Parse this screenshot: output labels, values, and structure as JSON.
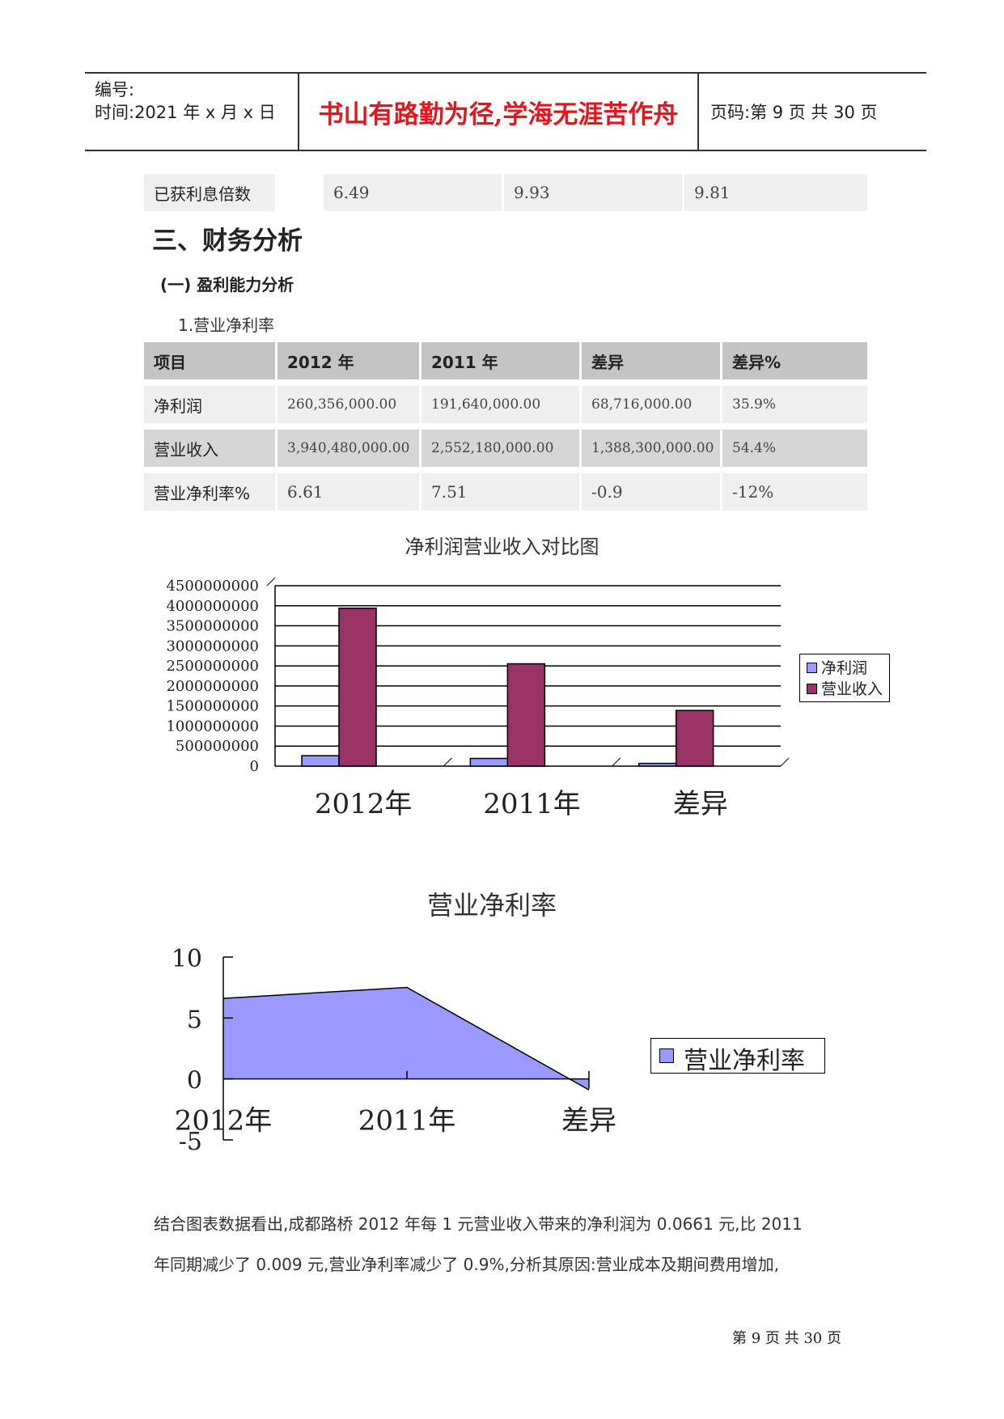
{
  "header": {
    "number_label": "编号:",
    "time_label": "时间:2021 年 x 月 x 日",
    "motto": "书山有路勤为径,学海无涯苦作舟",
    "page_code": "页码:第 9 页 共 30 页"
  },
  "top_row": {
    "label": "已获利息倍数",
    "v1": "6.49",
    "v2": "9.93",
    "v3": "9.81"
  },
  "section_title": "三、财务分析",
  "subsection_title": "(一) 盈利能力分析",
  "item_title": "1.营业净利率",
  "table": {
    "headers": [
      "项目",
      "2012 年",
      "2011 年",
      "差异",
      "差异%"
    ],
    "rows": [
      [
        "净利润",
        "260,356,000.00",
        "191,640,000.00",
        "68,716,000.00",
        "35.9%"
      ],
      [
        "营业收入",
        "3,940,480,000.00",
        "2,552,180,000.00",
        "1,388,300,000.00",
        "54.4%"
      ],
      [
        "营业净利率%",
        "6.61",
        "7.51",
        "-0.9",
        "-12%"
      ]
    ]
  },
  "chart1_title": "净利润营业收入对比图",
  "chart2_title": "营业净利率",
  "chart_data": [
    {
      "type": "bar",
      "title": "净利润营业收入对比图",
      "categories": [
        "2012年",
        "2011年",
        "差异"
      ],
      "series": [
        {
          "name": "净利润",
          "values": [
            260356000,
            191640000,
            68716000
          ],
          "color": "#9999ff"
        },
        {
          "name": "营业收入",
          "values": [
            3940480000,
            2552180000,
            1388300000
          ],
          "color": "#993366"
        }
      ],
      "ylim": [
        0,
        4500000000
      ],
      "yticks": [
        "4500000000",
        "4000000000",
        "3500000000",
        "3000000000",
        "2500000000",
        "2000000000",
        "1500000000",
        "1000000000",
        "500000000",
        "0"
      ],
      "grid": true,
      "legend": "right"
    },
    {
      "type": "area",
      "title": "营业净利率",
      "categories": [
        "2012年",
        "2011年",
        "差异"
      ],
      "series": [
        {
          "name": "营业净利率",
          "values": [
            6.61,
            7.51,
            -0.9
          ],
          "color": "#9999ff"
        }
      ],
      "ylim": [
        -5,
        10
      ],
      "yticks": [
        "10",
        "5",
        "0",
        "-5"
      ],
      "legend": "right"
    }
  ],
  "paragraph": [
    "结合图表数据看出,成都路桥 2012 年每 1 元营业收入带来的净利润为 0.0661 元,比 2011",
    "年同期减少了 0.009 元,营业净利率减少了 0.9%,分析其原因:营业成本及期间费用增加,"
  ],
  "footer": "第 9 页 共 30 页"
}
